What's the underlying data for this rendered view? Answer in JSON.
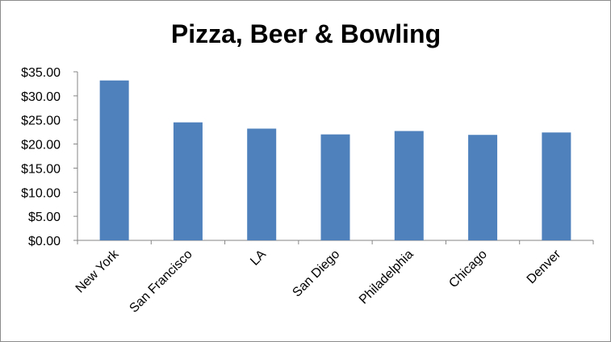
{
  "chart_data": {
    "type": "bar",
    "title": "Pizza, Beer & Bowling",
    "xlabel": "",
    "ylabel": "",
    "categories": [
      "New York",
      "San Francisco",
      "LA",
      "San Diego",
      "Philadelphia",
      "Chicago",
      "Denver"
    ],
    "values": [
      33.2,
      24.5,
      23.2,
      22.0,
      22.7,
      21.9,
      22.4
    ],
    "ylim": [
      0,
      35
    ],
    "yticks": [
      "$0.00",
      "$5.00",
      "$10.00",
      "$15.00",
      "$20.00",
      "$25.00",
      "$30.00",
      "$35.00"
    ],
    "grid": false,
    "legend": "none",
    "bar_color": "#4f81bd"
  }
}
